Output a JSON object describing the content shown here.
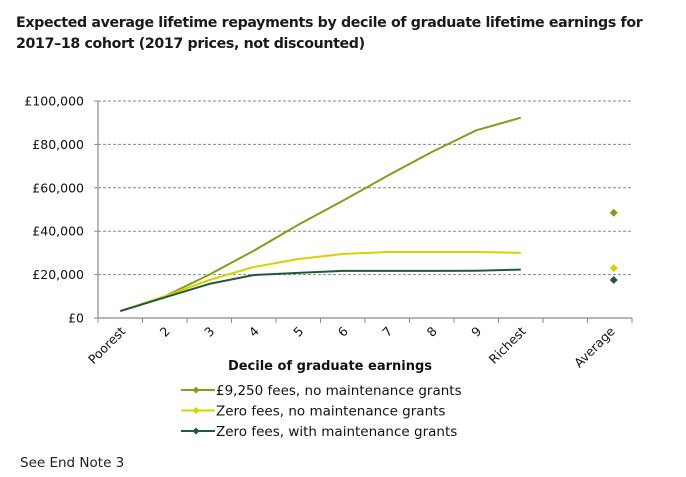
{
  "title": "Expected average lifetime repayments by decile of graduate lifetime earnings for 2017–18 cohort (2017 prices, not discounted)",
  "note": "See End Note 3",
  "colors": {
    "fees_no_grants": "#8a9a1b",
    "zero_fees_no_grants": "#d6d200",
    "zero_fees_with_grants": "#1e5b3a",
    "gridline": "#888888",
    "axis": "#8c8c8c"
  },
  "chart_data": {
    "type": "line",
    "title": "Expected average lifetime repayments by decile of graduate lifetime earnings for 2017–18 cohort (2017 prices, not discounted)",
    "xlabel": "Decile of graduate earnings",
    "ylabel": "",
    "ylim": [
      0,
      100000
    ],
    "yticks": [
      "£0",
      "£20,000",
      "£40,000",
      "£60,000",
      "£80,000",
      "£100,000"
    ],
    "ytick_values": [
      0,
      20000,
      40000,
      60000,
      80000,
      100000
    ],
    "grid": "horizontal dashed",
    "legend_position": "bottom",
    "categories": [
      "Poorest",
      "2",
      "3",
      "4",
      "5",
      "6",
      "7",
      "8",
      "9",
      "Richest",
      "",
      "Average"
    ],
    "series": [
      {
        "name": "£9,250 fees, no maintenance grants",
        "color": "#8a9a1b",
        "values": [
          3200,
          10000,
          20000,
          31000,
          43000,
          54000,
          65500,
          76500,
          86500,
          92300
        ],
        "average": 48500
      },
      {
        "name": "Zero fees, no maintenance grants",
        "color": "#d6d200",
        "values": [
          3200,
          10000,
          17500,
          23500,
          27200,
          29500,
          30400,
          30400,
          30400,
          30000
        ],
        "average": 23000
      },
      {
        "name": "Zero fees, with maintenance grants",
        "color": "#1e5b3a",
        "values": [
          3200,
          9500,
          15700,
          19800,
          20800,
          21700,
          21700,
          21700,
          21800,
          22300
        ],
        "average": 17500
      }
    ]
  }
}
